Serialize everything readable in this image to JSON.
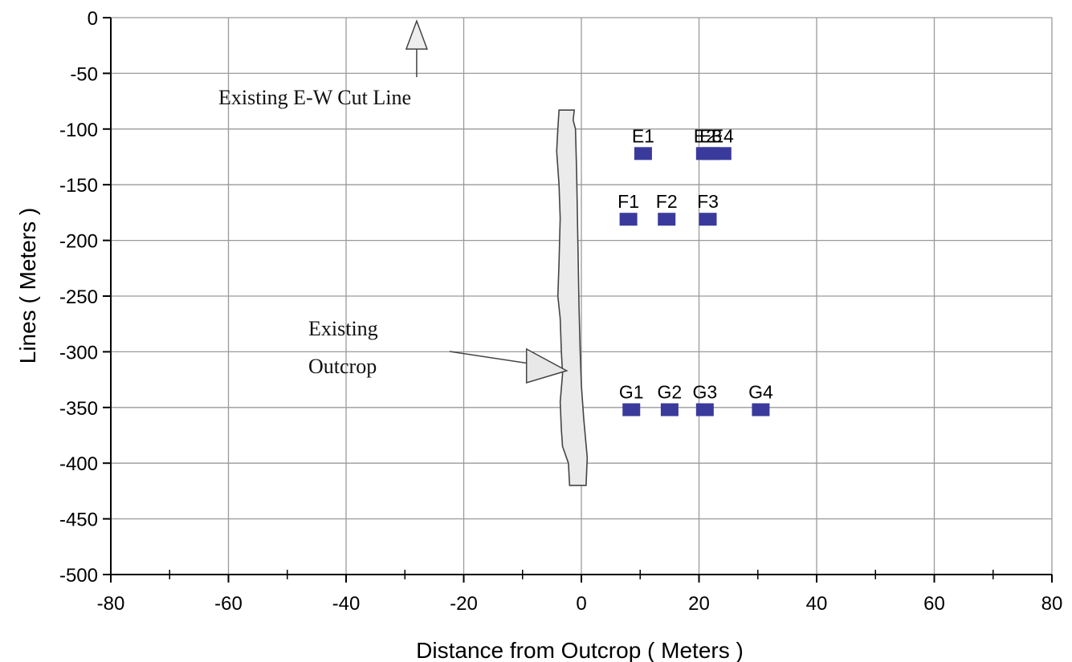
{
  "chart_data": {
    "type": "scatter",
    "xlabel": "Distance from Outcrop ( Meters )",
    "ylabel": "Lines ( Meters )",
    "xlim": [
      -80,
      80
    ],
    "ylim": [
      -500,
      0
    ],
    "x_ticks": [
      -80,
      -60,
      -40,
      -20,
      0,
      20,
      40,
      60,
      80
    ],
    "y_ticks": [
      0,
      -50,
      -100,
      -150,
      -200,
      -250,
      -300,
      -350,
      -400,
      -450,
      -500
    ],
    "grid": true,
    "marker_color": "#3a3a9c",
    "points": [
      {
        "label": "E1",
        "x": 10.5,
        "y": -122
      },
      {
        "label": "E2",
        "x": 21,
        "y": -122
      },
      {
        "label": "E3",
        "x": 22,
        "y": -122
      },
      {
        "label": "E4",
        "x": 24,
        "y": -122
      },
      {
        "label": "F1",
        "x": 8,
        "y": -181
      },
      {
        "label": "F2",
        "x": 14.5,
        "y": -181
      },
      {
        "label": "F3",
        "x": 21.5,
        "y": -181
      },
      {
        "label": "G1",
        "x": 8.5,
        "y": -352
      },
      {
        "label": "G2",
        "x": 15,
        "y": -352
      },
      {
        "label": "G3",
        "x": 21,
        "y": -352
      },
      {
        "label": "G4",
        "x": 30.5,
        "y": -352
      }
    ],
    "annotations": [
      {
        "text": "Existing E-W Cut Line",
        "arrow_x": -28,
        "arrow_y": -3
      },
      {
        "text_lines": [
          "Existing",
          "Outcrop"
        ],
        "arrow_x": -2.5,
        "arrow_y": -317
      }
    ],
    "outcrop_shape": [
      [
        -3.8,
        -83
      ],
      [
        -1.2,
        -83
      ],
      [
        -1.4,
        -92
      ],
      [
        -1,
        -100
      ],
      [
        -0.8,
        -140
      ],
      [
        -0.6,
        -200
      ],
      [
        -0.4,
        -260
      ],
      [
        -0.2,
        -300
      ],
      [
        0,
        -330
      ],
      [
        0.4,
        -360
      ],
      [
        1,
        -395
      ],
      [
        0.8,
        -420
      ],
      [
        -2,
        -420
      ],
      [
        -2.2,
        -400
      ],
      [
        -3.2,
        -385
      ],
      [
        -3.4,
        -370
      ],
      [
        -3.6,
        -345
      ],
      [
        -3.2,
        -320
      ],
      [
        -3.4,
        -300
      ],
      [
        -3.6,
        -270
      ],
      [
        -4,
        -250
      ],
      [
        -3.8,
        -220
      ],
      [
        -3.6,
        -180
      ],
      [
        -3.8,
        -150
      ],
      [
        -4.2,
        -120
      ],
      [
        -4,
        -100
      ]
    ]
  }
}
